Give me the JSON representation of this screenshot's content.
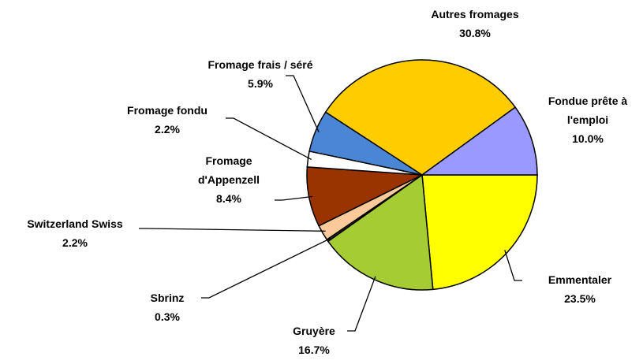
{
  "chart_data": {
    "type": "pie",
    "categories": [
      "Emmentaler",
      "Gruyère",
      "Sbrinz",
      "Switzerland Swiss",
      "Fromage d'Appenzell",
      "Fromage fondu",
      "Fromage frais / séré",
      "Autres fromages",
      "Fondue prête à l'emploi"
    ],
    "values": [
      23.5,
      16.7,
      0.3,
      2.2,
      8.4,
      2.2,
      5.9,
      30.8,
      10.0
    ],
    "value_labels": [
      "23.5%",
      "16.7%",
      "0.3%",
      "2.2%",
      "8.4%",
      "2.2%",
      "5.9%",
      "30.8%",
      "10.0%"
    ],
    "colors": [
      "#ffff00",
      "#a6cc33",
      "#2e2e2e",
      "#fcc99a",
      "#993300",
      "#ffffff",
      "#4a86d4",
      "#ffcc00",
      "#9999ff"
    ]
  }
}
